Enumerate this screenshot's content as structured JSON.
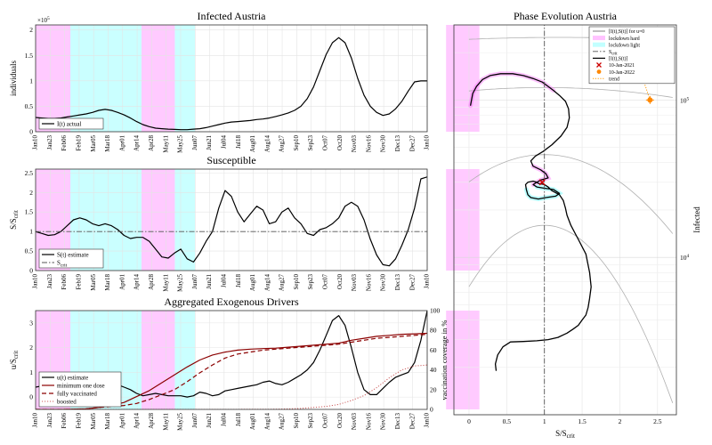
{
  "colors": {
    "lockdown_hard": "#ff66ff",
    "lockdown_light": "#66ffff",
    "estimate": "#000000",
    "scrit": "#555555",
    "min_one_dose": "#8b0000",
    "fully_vaccinated": "#8b0000",
    "boosted": "#cd5c5c",
    "trend": "#ff9900",
    "marker_2021": "#cc0000",
    "marker_2022": "#ff8800",
    "grid": "#e4e4e4",
    "contour": "#b0b0b0"
  },
  "time_axis": {
    "ticks": [
      "Jan10",
      "Jan23",
      "Feb06",
      "Feb19",
      "Mar05",
      "Mar18",
      "Apr01",
      "Apr14",
      "Apr28",
      "May11",
      "May25",
      "Jun07",
      "Jun21",
      "Jul04",
      "Jul18",
      "Aug01",
      "Aug14",
      "Aug27",
      "Sep10",
      "Sep23",
      "Oct07",
      "Oct20",
      "Nov03",
      "Nov16",
      "Nov30",
      "Dec13",
      "Dec27",
      "Jan10"
    ],
    "lockdown_hard": [
      [
        0,
        2.4
      ],
      [
        7.3,
        9.6
      ],
      [
        28.3,
        30.6
      ]
    ],
    "lockdown_light": [
      [
        2.4,
        7.3
      ],
      [
        9.6,
        11.0
      ]
    ]
  },
  "chart_data": [
    {
      "type": "line",
      "title": "Infected Austria",
      "ylabel": "individuals",
      "exponent_label": "×10",
      "exponent_power": "5",
      "ylim": [
        0,
        2.1
      ],
      "yticks": [
        "0",
        "0.5",
        "1",
        "1.5",
        "2"
      ],
      "legend": [
        "I(t) actual"
      ],
      "legend_position": "lower-left",
      "series": [
        {
          "name": "I(t) actual",
          "x": [
            0,
            1,
            2,
            3,
            4,
            5,
            6,
            7,
            8,
            9,
            10,
            11,
            12,
            13,
            14,
            15,
            16,
            17,
            18,
            19,
            20,
            21,
            22,
            23,
            24,
            25,
            26,
            27,
            28,
            29,
            30,
            31,
            32,
            33,
            34,
            35,
            36,
            37,
            38,
            39,
            40,
            41,
            42,
            43,
            44,
            45,
            46,
            47,
            48,
            49,
            50,
            51,
            52,
            53,
            54,
            55,
            56,
            57,
            58,
            59,
            60,
            61,
            62
          ],
          "y": [
            0.28,
            0.27,
            0.26,
            0.26,
            0.27,
            0.29,
            0.31,
            0.33,
            0.35,
            0.38,
            0.42,
            0.44,
            0.42,
            0.38,
            0.33,
            0.27,
            0.2,
            0.14,
            0.1,
            0.07,
            0.06,
            0.05,
            0.045,
            0.04,
            0.04,
            0.05,
            0.06,
            0.08,
            0.11,
            0.14,
            0.17,
            0.19,
            0.2,
            0.21,
            0.22,
            0.24,
            0.25,
            0.27,
            0.3,
            0.33,
            0.37,
            0.42,
            0.5,
            0.65,
            0.88,
            1.2,
            1.52,
            1.75,
            1.85,
            1.75,
            1.45,
            1.05,
            0.72,
            0.5,
            0.38,
            0.32,
            0.35,
            0.45,
            0.6,
            0.8,
            0.98,
            1.0,
            1.0
          ]
        }
      ]
    },
    {
      "type": "line",
      "title": "Susceptible",
      "ylabel": "S/S",
      "ylabel_sub": "crit",
      "ylim": [
        0,
        2.6
      ],
      "yticks": [
        "0",
        "0.5",
        "1",
        "1.5",
        "2",
        "2.5"
      ],
      "legend": [
        "S(t) estimate",
        "S"
      ],
      "legend_sub": "crit",
      "legend_position": "lower-left",
      "series": [
        {
          "name": "S(t) estimate",
          "x": [
            0,
            1,
            2,
            3,
            4,
            5,
            6,
            7,
            8,
            9,
            10,
            11,
            12,
            13,
            14,
            15,
            16,
            17,
            18,
            19,
            20,
            21,
            22,
            23,
            24,
            25,
            26,
            27,
            28,
            29,
            30,
            31,
            32,
            33,
            34,
            35,
            36,
            37,
            38,
            39,
            40,
            41,
            42,
            43,
            44,
            45,
            46,
            47,
            48,
            49,
            50,
            51,
            52,
            53,
            54,
            55,
            56,
            57,
            58,
            59,
            60,
            61,
            62
          ],
          "y": [
            1.0,
            0.95,
            0.9,
            0.92,
            1.0,
            1.15,
            1.3,
            1.35,
            1.3,
            1.2,
            1.15,
            1.2,
            1.15,
            1.05,
            0.9,
            0.82,
            0.85,
            0.85,
            0.75,
            0.55,
            0.35,
            0.32,
            0.45,
            0.55,
            0.3,
            0.22,
            0.45,
            0.75,
            1.0,
            1.6,
            2.05,
            1.9,
            1.5,
            1.25,
            1.45,
            1.65,
            1.55,
            1.2,
            1.25,
            1.5,
            1.6,
            1.35,
            1.2,
            0.95,
            0.9,
            1.05,
            1.1,
            1.2,
            1.35,
            1.65,
            1.75,
            1.65,
            1.3,
            0.8,
            0.4,
            0.15,
            0.12,
            0.3,
            0.65,
            1.05,
            1.6,
            2.35,
            2.4
          ]
        },
        {
          "name": "S",
          "x": [
            0,
            62
          ],
          "y": [
            1,
            1
          ]
        }
      ]
    },
    {
      "type": "line",
      "title": "Aggregated Exogenous Drivers",
      "ylabel": "u/S",
      "ylabel_sub": "crit",
      "ylabel_right": "vaccination coverage in %",
      "ylim": [
        -0.5,
        3.5
      ],
      "ylim_right": [
        0,
        100
      ],
      "yticks": [
        "0",
        "1",
        "2",
        "3"
      ],
      "yticks_right": [
        "0",
        "20",
        "40",
        "60",
        "80",
        "100"
      ],
      "legend": [
        "u(t) estimate",
        "minimum one dose",
        "fully vaccinated",
        "boosted"
      ],
      "legend_position": "lower-left",
      "series": [
        {
          "name": "u(t) estimate",
          "x": [
            0,
            1,
            2,
            3,
            4,
            5,
            6,
            7,
            8,
            9,
            10,
            11,
            12,
            13,
            14,
            15,
            16,
            17,
            18,
            19,
            20,
            21,
            22,
            23,
            24,
            25,
            26,
            27,
            28,
            29,
            30,
            31,
            32,
            33,
            34,
            35,
            36,
            37,
            38,
            39,
            40,
            41,
            42,
            43,
            44,
            45,
            46,
            47,
            48,
            49,
            50,
            51,
            52,
            53,
            54,
            55,
            56,
            57,
            58,
            59,
            60,
            61,
            62
          ],
          "y": [
            0.4,
            0.45,
            0.5,
            0.55,
            0.6,
            0.6,
            0.55,
            0.5,
            0.5,
            0.55,
            0.6,
            0.65,
            0.6,
            0.5,
            0.4,
            0.3,
            0.15,
            0.05,
            0.1,
            0.15,
            0.1,
            0.05,
            0.05,
            0.05,
            0.0,
            0.05,
            0.2,
            0.15,
            0.05,
            0.1,
            0.25,
            0.3,
            0.35,
            0.4,
            0.45,
            0.5,
            0.6,
            0.65,
            0.55,
            0.5,
            0.6,
            0.75,
            0.9,
            1.1,
            1.4,
            1.9,
            2.5,
            3.1,
            3.3,
            2.9,
            2.0,
            1.0,
            0.3,
            0.1,
            0.1,
            0.35,
            0.6,
            0.8,
            0.9,
            1.0,
            1.4,
            2.3,
            3.5
          ]
        },
        {
          "name": "minimum one dose",
          "x": [
            0,
            4,
            8,
            10,
            12,
            14,
            16,
            18,
            20,
            22,
            24,
            26,
            28,
            30,
            32,
            34,
            36,
            38,
            40,
            42,
            44,
            46,
            48,
            50,
            52,
            54,
            56,
            58,
            60,
            62
          ],
          "y": [
            0,
            0,
            0.5,
            2,
            4,
            7,
            13,
            19,
            27,
            35,
            43,
            50,
            55,
            58,
            60,
            61,
            61.5,
            62,
            63,
            64,
            65,
            66,
            67,
            70,
            72,
            74,
            75,
            76,
            76.5,
            77
          ]
        },
        {
          "name": "fully vaccinated",
          "x": [
            0,
            6,
            8,
            10,
            12,
            14,
            16,
            18,
            20,
            22,
            24,
            26,
            28,
            30,
            32,
            34,
            36,
            38,
            40,
            42,
            44,
            46,
            48,
            50,
            52,
            54,
            56,
            58,
            60,
            62
          ],
          "y": [
            0,
            0,
            0.5,
            2,
            3,
            4,
            6,
            10,
            15,
            20,
            28,
            37,
            45,
            52,
            56,
            58,
            60,
            61,
            62,
            63,
            64,
            65,
            66,
            68,
            70,
            72,
            73,
            74,
            75,
            76
          ]
        },
        {
          "name": "boosted",
          "x": [
            0,
            30,
            38,
            40,
            42,
            44,
            46,
            48,
            50,
            52,
            54,
            56,
            58,
            60,
            62
          ],
          "y": [
            0,
            0,
            0.2,
            0.5,
            1,
            2,
            3,
            5,
            9,
            14,
            22,
            32,
            40,
            44,
            45
          ]
        }
      ]
    },
    {
      "type": "line",
      "title": "Phase Evolution Austria",
      "xlabel": "S/S",
      "xlabel_sub": "crit",
      "ylabel": "Infected",
      "yscale": "log",
      "xlim": [
        -0.2,
        2.75
      ],
      "ylim": [
        1000,
        300000
      ],
      "xticks": [
        "0",
        "0.5",
        "1",
        "1.5",
        "2",
        "2.5"
      ],
      "yticks": [
        "10^4",
        "10^5"
      ],
      "legend": [
        "[I(t),S(t)] for u=0",
        "lockdown hard",
        "lockdown light",
        "S",
        "[I(t),S(t)]",
        "10-Jan-2021",
        "10-Jan-2022",
        "trend"
      ],
      "legend_sub_index": 3,
      "legend_sub": "crit",
      "legend_position": "top-right",
      "series": [
        {
          "name": "[I(t),S(t)]",
          "x": [
            0.02,
            0.05,
            0.1,
            0.18,
            0.28,
            0.42,
            0.58,
            0.72,
            0.85,
            0.97,
            1.05,
            1.12,
            1.2,
            1.28,
            1.32,
            1.33,
            1.3,
            1.22,
            1.1,
            0.98,
            0.88,
            0.82,
            0.85,
            0.95,
            1.02,
            1.05,
            1.0,
            0.95,
            0.9,
            0.85,
            0.9,
            1.0,
            1.12,
            1.2,
            1.15,
            1.02,
            0.92,
            0.82,
            0.78,
            0.76,
            0.75,
            0.78,
            0.85,
            0.9,
            0.92,
            1.0,
            1.05,
            1.1,
            1.2,
            1.25,
            1.28,
            1.3,
            1.35,
            1.45,
            1.55,
            1.6,
            1.62,
            1.6,
            1.58,
            1.55,
            1.5,
            1.45,
            1.38,
            1.3,
            1.18,
            1.05,
            0.9,
            0.72,
            0.55,
            0.45,
            0.38,
            0.35,
            0.36
          ],
          "y": [
            92000,
            110000,
            122000,
            135000,
            143000,
            147000,
            147000,
            143000,
            137000,
            130000,
            122000,
            115000,
            107000,
            98000,
            88000,
            77000,
            67000,
            59000,
            52000,
            47000,
            44000,
            41000,
            38000,
            36000,
            34000,
            32000,
            31500,
            31000,
            30000,
            29000,
            28000,
            27500,
            27000,
            25500,
            24500,
            24000,
            23500,
            24000,
            25000,
            27000,
            29000,
            30000,
            30500,
            30000,
            29500,
            29000,
            28000,
            26500,
            25000,
            23000,
            20500,
            18500,
            16000,
            13000,
            10500,
            8000,
            6500,
            5500,
            4800,
            4300,
            4000,
            3700,
            3500,
            3300,
            3100,
            3000,
            2950,
            2920,
            2900,
            2700,
            2400,
            2100,
            1900
          ]
        },
        {
          "name": "S",
          "x": [
            1,
            1
          ],
          "y": [
            1000,
            300000
          ]
        },
        {
          "name": "10-Jan-2021",
          "x": [
            0.97
          ],
          "y": [
            30000
          ]
        },
        {
          "name": "10-Jan-2022",
          "x": [
            2.4
          ],
          "y": [
            100000
          ]
        },
        {
          "name": "trend",
          "x": [
            2.4,
            2.34,
            2.27
          ],
          "y": [
            100000,
            122000,
            148000
          ]
        }
      ]
    }
  ]
}
